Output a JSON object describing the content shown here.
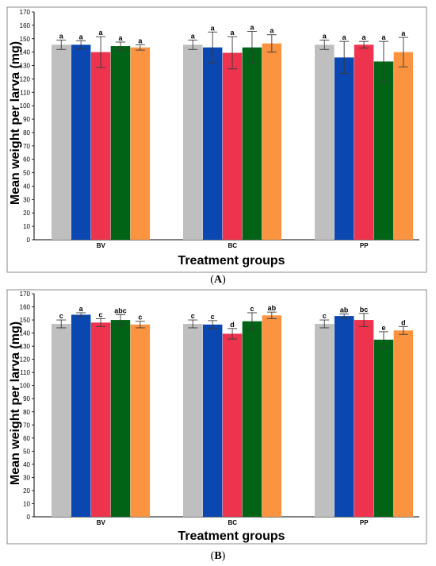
{
  "chart_data": [
    {
      "type": "bar",
      "panel_label": "(A)",
      "panel_letter": "A",
      "xlabel": "Treatment groups",
      "ylabel": "Mean weight per larva (mg)",
      "ylim": [
        0,
        170
      ],
      "yticks": [
        0,
        10,
        20,
        30,
        40,
        50,
        60,
        70,
        80,
        90,
        100,
        110,
        120,
        130,
        140,
        150,
        160,
        170
      ],
      "categories": [
        "BV",
        "BC",
        "PP"
      ],
      "series": [
        {
          "color": "#bfbfbf",
          "values": [
            145.5,
            145.5,
            145.5
          ],
          "errors": [
            3.5,
            3.5,
            3.5
          ],
          "labels": [
            "a",
            "a",
            "a"
          ]
        },
        {
          "color": "#0a47b0",
          "values": [
            145.5,
            143.5,
            136.0
          ],
          "errors": [
            3.0,
            11.5,
            12.0
          ],
          "labels": [
            "a",
            "a",
            "a"
          ]
        },
        {
          "color": "#ee334e",
          "values": [
            140.0,
            139.5,
            145.5
          ],
          "errors": [
            11.5,
            12.0,
            2.5
          ],
          "labels": [
            "a",
            "a",
            "a"
          ]
        },
        {
          "color": "#006316",
          "values": [
            144.5,
            143.5,
            133.0
          ],
          "errors": [
            3.0,
            12.0,
            15.0
          ],
          "labels": [
            "a",
            "a",
            "a"
          ]
        },
        {
          "color": "#fb9441",
          "values": [
            143.5,
            146.5,
            140.0
          ],
          "errors": [
            2.0,
            6.5,
            11.0
          ],
          "labels": [
            "a",
            "a",
            "a"
          ]
        }
      ]
    },
    {
      "type": "bar",
      "panel_label": "(B)",
      "panel_letter": "B",
      "xlabel": "Treatment groups",
      "ylabel": "Mean weight per larva (mg)",
      "ylim": [
        0,
        170
      ],
      "yticks": [
        0,
        10,
        20,
        30,
        40,
        50,
        60,
        70,
        80,
        90,
        100,
        110,
        120,
        130,
        140,
        150,
        160,
        170
      ],
      "categories": [
        "BV",
        "BC",
        "PP"
      ],
      "series": [
        {
          "color": "#bfbfbf",
          "values": [
            147.0,
            147.0,
            147.0
          ],
          "errors": [
            3.0,
            3.0,
            3.0
          ],
          "labels": [
            "c",
            "c",
            "c"
          ]
        },
        {
          "color": "#0a47b0",
          "values": [
            154.0,
            146.5,
            153.0
          ],
          "errors": [
            1.5,
            3.0,
            1.5
          ],
          "labels": [
            "a",
            "c",
            "ab"
          ]
        },
        {
          "color": "#ee334e",
          "values": [
            148.0,
            139.5,
            150.0
          ],
          "errors": [
            3.0,
            4.0,
            5.0
          ],
          "labels": [
            "c",
            "d",
            "bc"
          ]
        },
        {
          "color": "#006316",
          "values": [
            150.0,
            149.0,
            135.0
          ],
          "errors": [
            4.0,
            6.5,
            6.0
          ],
          "labels": [
            "abc",
            "c",
            "e"
          ]
        },
        {
          "color": "#fb9441",
          "values": [
            146.5,
            153.5,
            142.0
          ],
          "errors": [
            2.5,
            2.5,
            3.0
          ],
          "labels": [
            "c",
            "ab",
            "d"
          ]
        }
      ]
    }
  ]
}
